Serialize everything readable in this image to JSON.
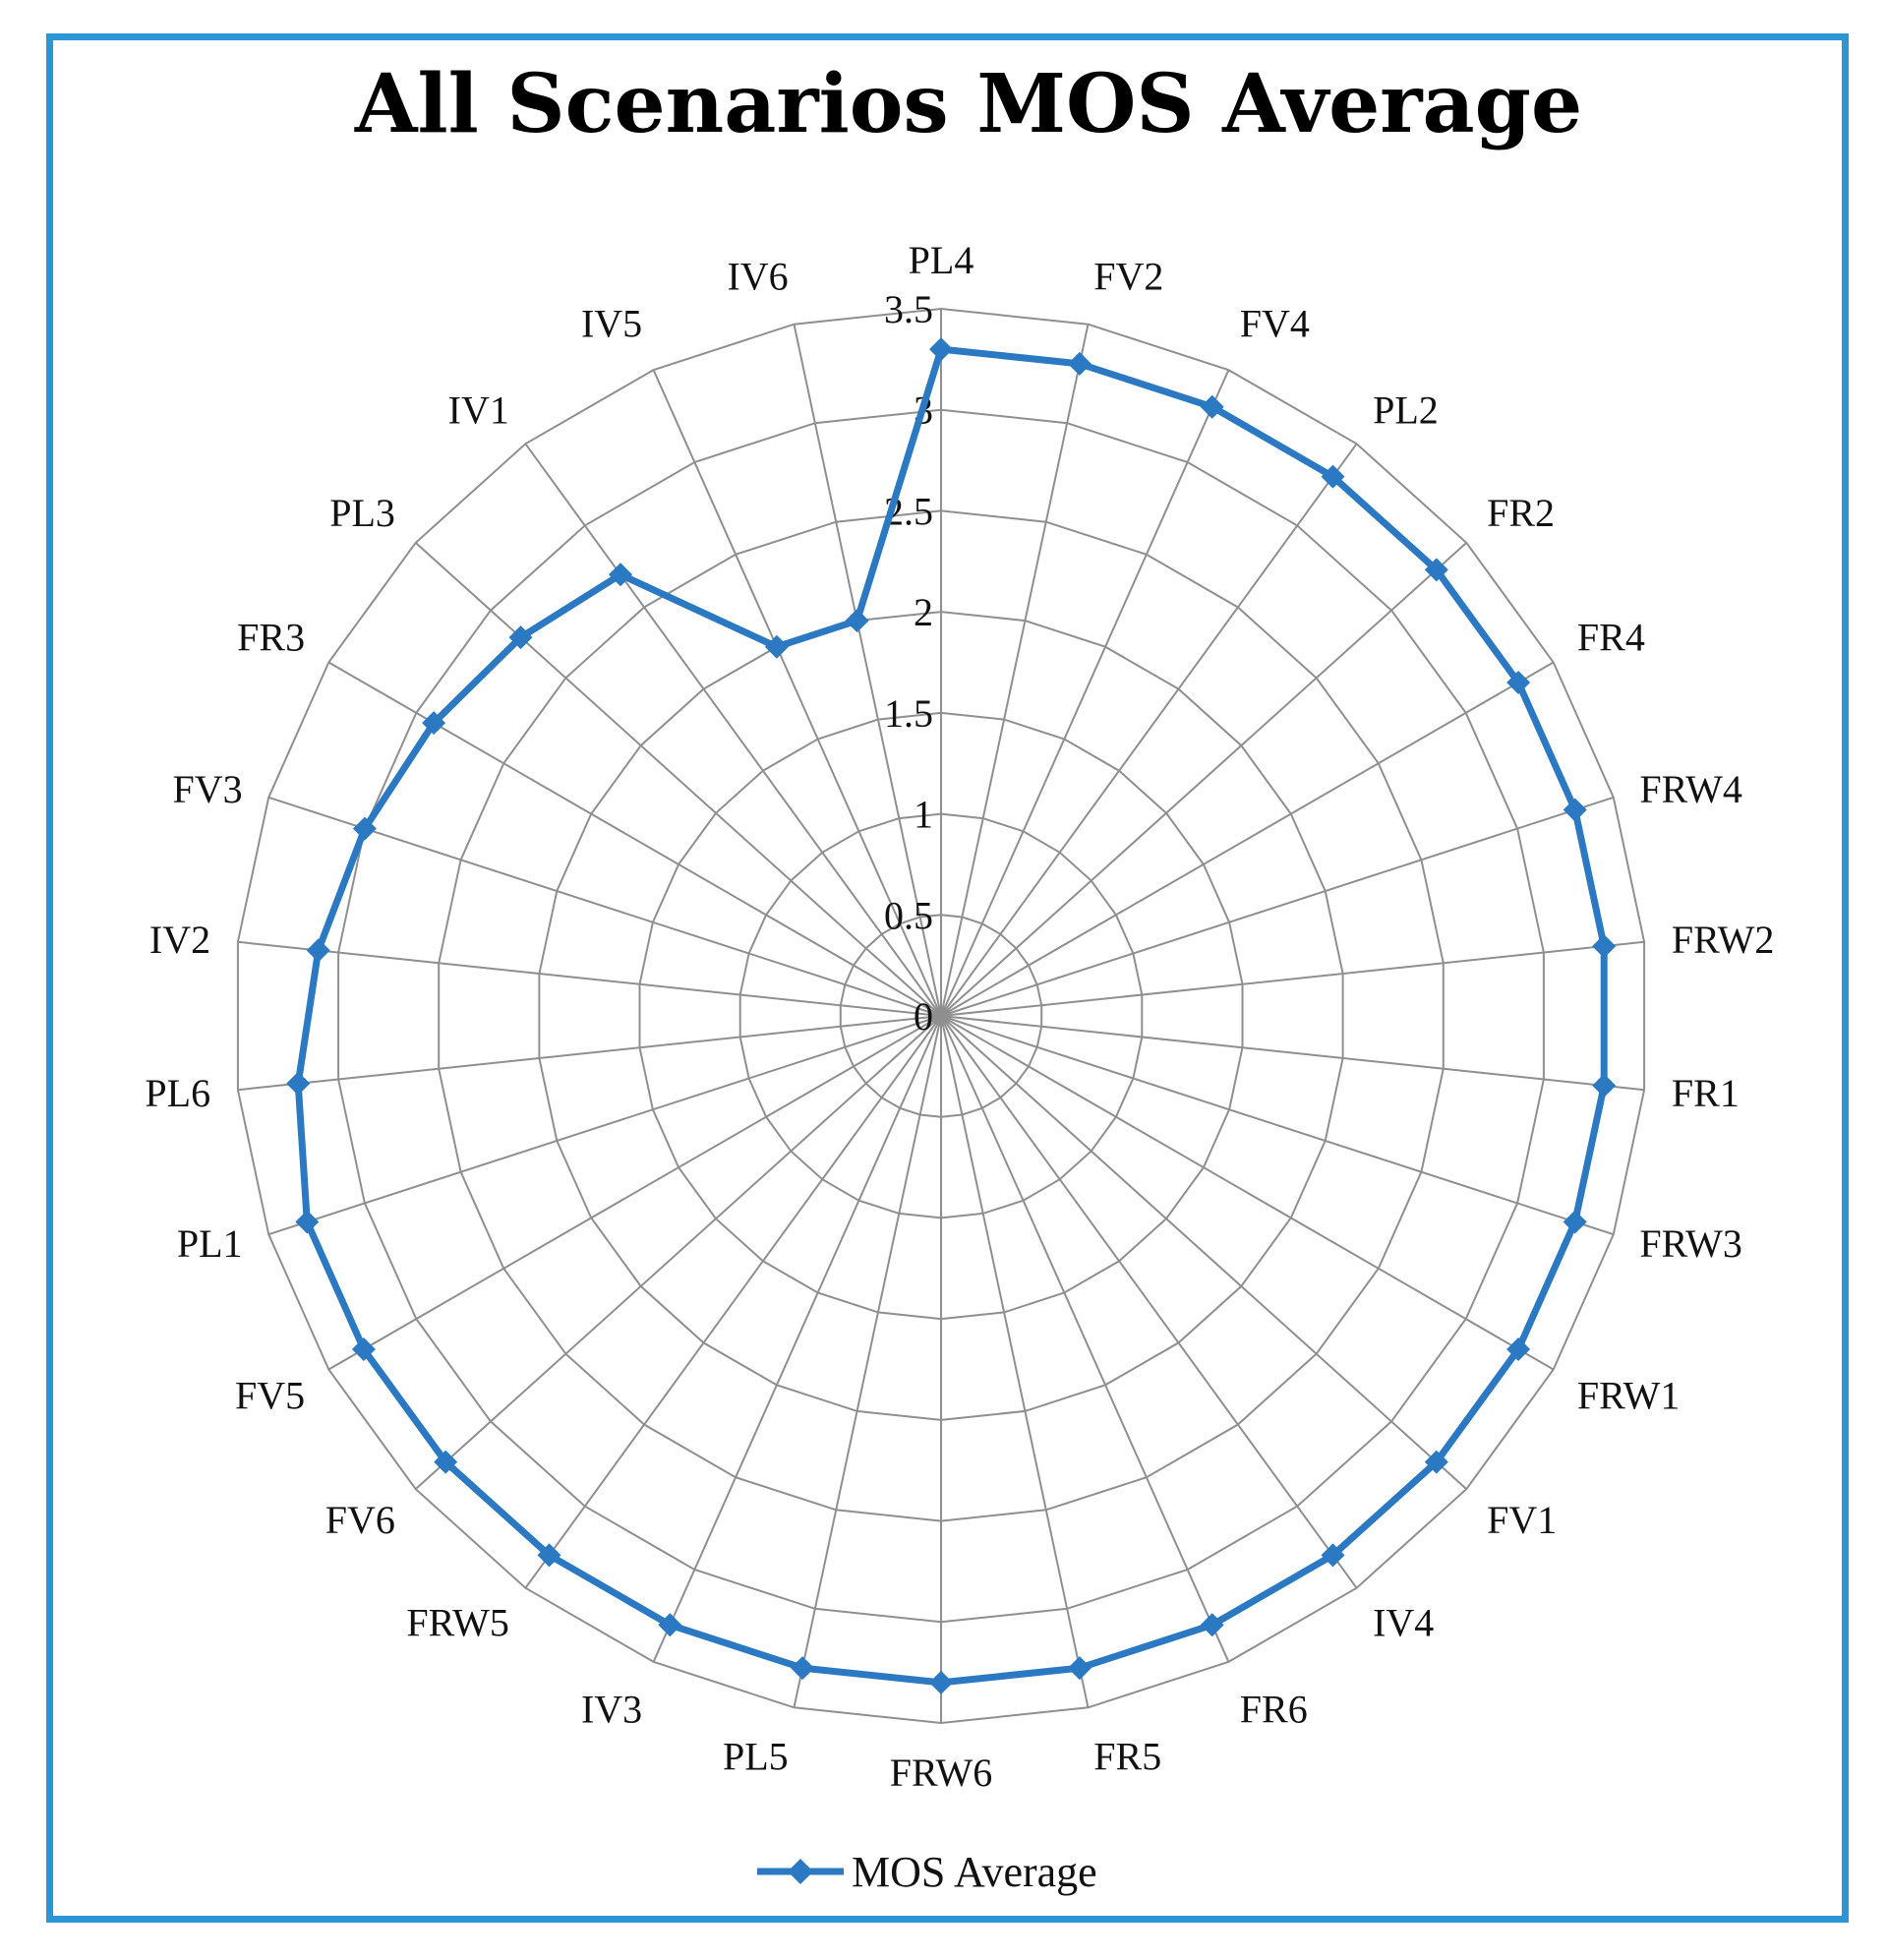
{
  "chart_data": {
    "type": "radar",
    "title": "All Scenarios MOS Average",
    "categories": [
      "PL4",
      "FV2",
      "FV4",
      "PL2",
      "FR2",
      "FR4",
      "FRW4",
      "FRW2",
      "FR1",
      "FRW3",
      "FRW1",
      "FV1",
      "IV4",
      "FR6",
      "FR5",
      "FRW6",
      "PL5",
      "IV3",
      "FRW5",
      "FV6",
      "FV5",
      "PL1",
      "PL6",
      "IV2",
      "FV3",
      "FR3",
      "PL3",
      "IV1",
      "IV5",
      "IV6"
    ],
    "series": [
      {
        "name": "MOS Average",
        "values": [
          3.3,
          3.3,
          3.3,
          3.3,
          3.3,
          3.3,
          3.3,
          3.3,
          3.3,
          3.3,
          3.3,
          3.3,
          3.3,
          3.3,
          3.3,
          3.3,
          3.3,
          3.3,
          3.3,
          3.3,
          3.3,
          3.3,
          3.2,
          3.1,
          3.0,
          2.9,
          2.8,
          2.7,
          2.0,
          2.0
        ],
        "color": "#2b79c2"
      }
    ],
    "rlim": [
      0,
      3.5
    ],
    "ticks": [
      "0",
      "0.5",
      "1",
      "1.5",
      "2",
      "2.5",
      "3",
      "3.5"
    ],
    "grid": true,
    "legend_position": "bottom"
  },
  "colors": {
    "border": "#2b95d6",
    "series": "#2b79c2",
    "grid": "#8f8f8f"
  }
}
